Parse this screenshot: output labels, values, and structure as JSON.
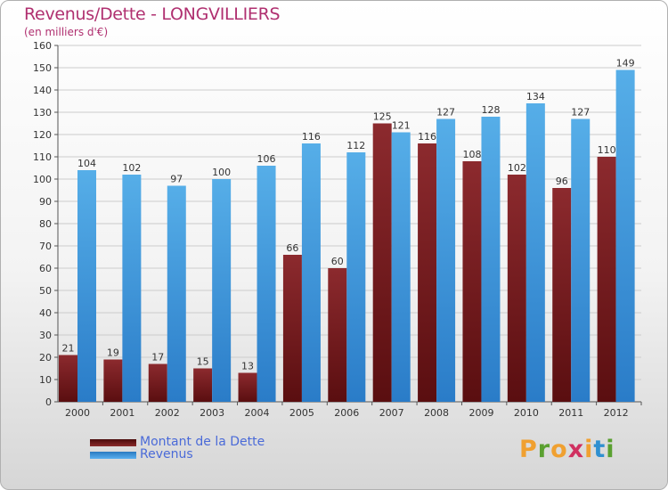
{
  "title": "Revenus/Dette - LONGVILLIERS",
  "subtitle": "(en milliers d'€)",
  "logo": {
    "letters": [
      "P",
      "r",
      "o",
      "x",
      "i",
      "t",
      "i"
    ],
    "colors": [
      "#f0a030",
      "#5aa030",
      "#f0a030",
      "#d03060",
      "#f0a030",
      "#3090d0",
      "#5aa030"
    ]
  },
  "chart_data": {
    "type": "bar",
    "categories": [
      "2000",
      "2001",
      "2002",
      "2003",
      "2004",
      "2005",
      "2006",
      "2007",
      "2008",
      "2009",
      "2010",
      "2011",
      "2012"
    ],
    "series": [
      {
        "name": "Montant de la Dette",
        "values": [
          21,
          19,
          17,
          15,
          13,
          66,
          60,
          125,
          116,
          108,
          102,
          96,
          110
        ],
        "color": "#6b1a1a"
      },
      {
        "name": "Revenus",
        "values": [
          104,
          102,
          97,
          100,
          106,
          116,
          112,
          121,
          127,
          128,
          134,
          127,
          149
        ],
        "color": "#3f9ae0"
      }
    ],
    "ylim": [
      0,
      160
    ],
    "yticks": [
      0,
      10,
      20,
      30,
      40,
      50,
      60,
      70,
      80,
      90,
      100,
      110,
      120,
      130,
      140,
      150,
      160
    ],
    "grid": true,
    "legend_position": "bottom-left"
  }
}
